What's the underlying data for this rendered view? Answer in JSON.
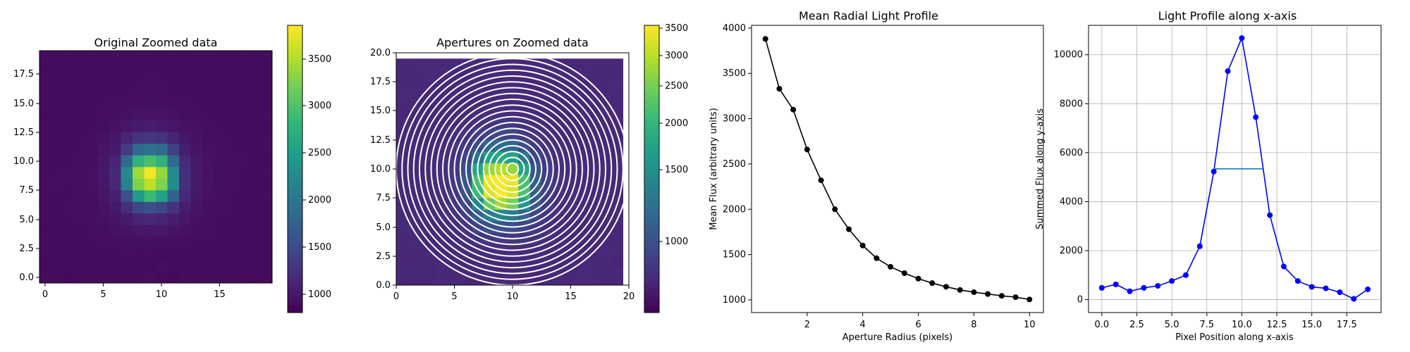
{
  "colormap": [
    "#440154",
    "#482878",
    "#3e4989",
    "#31688e",
    "#26828e",
    "#1f9e89",
    "#35b779",
    "#6ece58",
    "#b5de2b",
    "#fde725"
  ],
  "chart_data": [
    {
      "type": "heatmap",
      "title": "Original Zoomed data",
      "xticks": [
        "0",
        "5",
        "10",
        "15"
      ],
      "yticks": [
        "0.0",
        "2.5",
        "5.0",
        "7.5",
        "10.0",
        "12.5",
        "15.0",
        "17.5"
      ],
      "colorbar_ticks": [
        "1000",
        "1500",
        "2000",
        "2500",
        "3000",
        "3500"
      ],
      "colorbar_range": [
        850,
        3900
      ],
      "values": [
        [
          950,
          940,
          930,
          945,
          950,
          955,
          940,
          935,
          950,
          960,
          945,
          930,
          950,
          945,
          955,
          940,
          950,
          945,
          930,
          940
        ],
        [
          940,
          950,
          945,
          935,
          950,
          940,
          955,
          945,
          950,
          940,
          960,
          945,
          935,
          950,
          945,
          940,
          955,
          945,
          940,
          950
        ],
        [
          945,
          935,
          950,
          940,
          955,
          950,
          945,
          960,
          955,
          950,
          945,
          955,
          950,
          945,
          940,
          955,
          945,
          950,
          945,
          935
        ],
        [
          950,
          945,
          940,
          955,
          950,
          960,
          965,
          970,
          975,
          980,
          975,
          965,
          960,
          955,
          950,
          945,
          950,
          940,
          955,
          945
        ],
        [
          940,
          950,
          955,
          945,
          960,
          970,
          990,
          1010,
          1030,
          1040,
          1030,
          1010,
          990,
          975,
          960,
          950,
          945,
          955,
          940,
          950
        ],
        [
          945,
          955,
          950,
          960,
          965,
          985,
          1020,
          1080,
          1150,
          1180,
          1150,
          1090,
          1030,
          990,
          965,
          955,
          950,
          945,
          955,
          945
        ],
        [
          950,
          945,
          960,
          955,
          975,
          1000,
          1060,
          1250,
          1500,
          1600,
          1500,
          1300,
          1100,
          1010,
          980,
          960,
          950,
          955,
          945,
          950
        ],
        [
          955,
          950,
          955,
          965,
          980,
          1020,
          1120,
          1600,
          2500,
          2900,
          2600,
          1800,
          1200,
          1040,
          990,
          965,
          955,
          950,
          945,
          955
        ],
        [
          950,
          960,
          950,
          960,
          985,
          1040,
          1180,
          2200,
          3300,
          3600,
          3300,
          2300,
          1250,
          1060,
          995,
          970,
          960,
          955,
          950,
          945
        ],
        [
          945,
          955,
          960,
          965,
          990,
          1050,
          1200,
          2300,
          3450,
          3850,
          3400,
          2300,
          1260,
          1070,
          1000,
          975,
          960,
          950,
          955,
          950
        ],
        [
          950,
          945,
          955,
          960,
          980,
          1030,
          1150,
          1900,
          2800,
          3000,
          2800,
          1900,
          1200,
          1050,
          990,
          970,
          955,
          960,
          950,
          945
        ],
        [
          955,
          950,
          945,
          955,
          975,
          1010,
          1080,
          1400,
          1900,
          2000,
          1900,
          1450,
          1100,
          1020,
          985,
          965,
          950,
          955,
          945,
          950
        ],
        [
          945,
          955,
          950,
          950,
          965,
          990,
          1030,
          1150,
          1300,
          1350,
          1300,
          1150,
          1040,
          1000,
          975,
          960,
          955,
          945,
          950,
          955
        ],
        [
          950,
          945,
          955,
          945,
          955,
          970,
          1000,
          1040,
          1080,
          1100,
          1080,
          1040,
          1005,
          985,
          965,
          955,
          945,
          955,
          950,
          945
        ],
        [
          940,
          950,
          945,
          955,
          950,
          960,
          975,
          990,
          1010,
          1020,
          1010,
          990,
          975,
          965,
          955,
          950,
          955,
          945,
          940,
          950
        ],
        [
          950,
          940,
          955,
          945,
          955,
          950,
          960,
          965,
          975,
          980,
          975,
          965,
          960,
          955,
          945,
          955,
          950,
          940,
          955,
          945
        ],
        [
          945,
          955,
          940,
          950,
          945,
          955,
          950,
          955,
          960,
          965,
          960,
          955,
          950,
          945,
          955,
          945,
          950,
          955,
          945,
          940
        ],
        [
          950,
          945,
          950,
          940,
          955,
          945,
          955,
          950,
          955,
          960,
          955,
          950,
          945,
          955,
          945,
          950,
          940,
          950,
          945,
          955
        ],
        [
          940,
          950,
          945,
          955,
          945,
          950,
          945,
          955,
          950,
          955,
          950,
          945,
          955,
          945,
          950,
          945,
          955,
          945,
          950,
          945
        ],
        [
          950,
          940,
          955,
          945,
          950,
          945,
          950,
          945,
          955,
          950,
          945,
          950,
          945,
          950,
          955,
          940,
          945,
          950,
          940,
          950
        ]
      ]
    },
    {
      "type": "heatmap",
      "title": "Apertures on Zoomed data",
      "xticks": [
        "0",
        "5",
        "10",
        "15",
        "20"
      ],
      "yticks": [
        "0.0",
        "2.5",
        "5.0",
        "7.5",
        "10.0",
        "12.5",
        "15.0",
        "17.5",
        "20.0"
      ],
      "colorbar_ticks": [
        "1000",
        "1500",
        "2000",
        "2500",
        "3000",
        "3500"
      ],
      "colorbar_range": [
        800,
        3550
      ],
      "aperture_center": [
        10,
        10
      ],
      "aperture_radii": [
        0.5,
        1,
        1.5,
        2,
        2.5,
        3,
        3.5,
        4,
        4.5,
        5,
        5.5,
        6,
        6.5,
        7,
        7.5,
        8,
        8.5,
        9,
        9.5,
        10
      ]
    },
    {
      "type": "line",
      "title": "Mean Radial Light Profile",
      "xlabel": "Aperture Radius (pixels)",
      "ylabel": "Mean Flux (arbitrary units)",
      "xticks": [
        "2",
        "4",
        "6",
        "8",
        "10"
      ],
      "yticks": [
        "1000",
        "1500",
        "2000",
        "2500",
        "3000",
        "3500",
        "4000"
      ],
      "xlim": [
        0.0,
        10.5
      ],
      "ylim": [
        860,
        4030
      ],
      "x": [
        0.5,
        1,
        1.5,
        2,
        2.5,
        3,
        3.5,
        4,
        4.5,
        5,
        5.5,
        6,
        6.5,
        7,
        7.5,
        8,
        8.5,
        9,
        9.5,
        10
      ],
      "y": [
        3880,
        3330,
        3100,
        2660,
        2320,
        2000,
        1780,
        1600,
        1460,
        1365,
        1295,
        1235,
        1185,
        1145,
        1110,
        1085,
        1065,
        1045,
        1030,
        1005
      ],
      "color": "#000000"
    },
    {
      "type": "line",
      "title": "Light Profile along x-axis",
      "xlabel": "Pixel Position along x-axis",
      "ylabel": "Summed Flux along y-axis",
      "xticks": [
        "0.0",
        "2.5",
        "5.0",
        "7.5",
        "10.0",
        "12.5",
        "15.0",
        "17.5"
      ],
      "yticks": [
        "0",
        "2000",
        "4000",
        "6000",
        "8000",
        "10000"
      ],
      "xlim": [
        -0.95,
        19.95
      ],
      "ylim": [
        -530,
        11200
      ],
      "grid": true,
      "x": [
        0,
        1,
        2,
        3,
        4,
        5,
        6,
        7,
        8,
        9,
        10,
        11,
        12,
        13,
        14,
        15,
        16,
        17,
        18,
        19
      ],
      "y": [
        480,
        620,
        340,
        480,
        560,
        760,
        1000,
        2180,
        5230,
        9330,
        10680,
        7450,
        3450,
        1350,
        760,
        520,
        460,
        300,
        30,
        420
      ],
      "color": "#0000ff",
      "fwhm_line": {
        "x": [
          8,
          11.5
        ],
        "y": 5340,
        "color": "#1f77b4"
      }
    }
  ]
}
